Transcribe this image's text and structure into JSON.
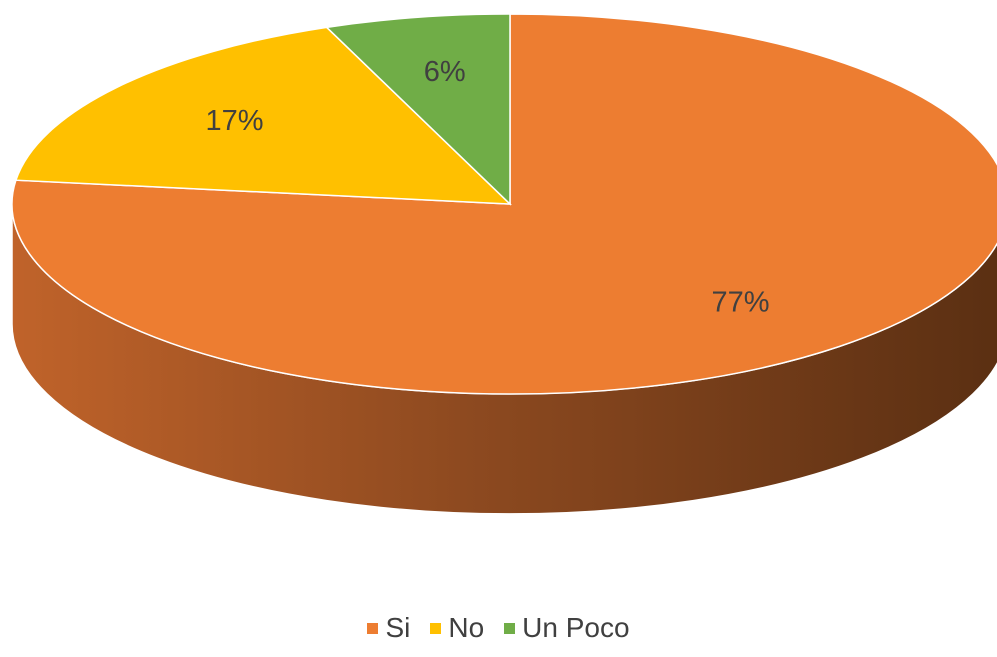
{
  "chart_data": {
    "type": "pie",
    "style": "3d",
    "categories": [
      "Si",
      "No",
      "Un Poco"
    ],
    "values": [
      77,
      17,
      6
    ],
    "labels": [
      "77%",
      "17%",
      "6%"
    ],
    "colors": [
      "#ED7D31",
      "#FFC000",
      "#70AD47"
    ],
    "title": "",
    "legend_position": "bottom"
  }
}
